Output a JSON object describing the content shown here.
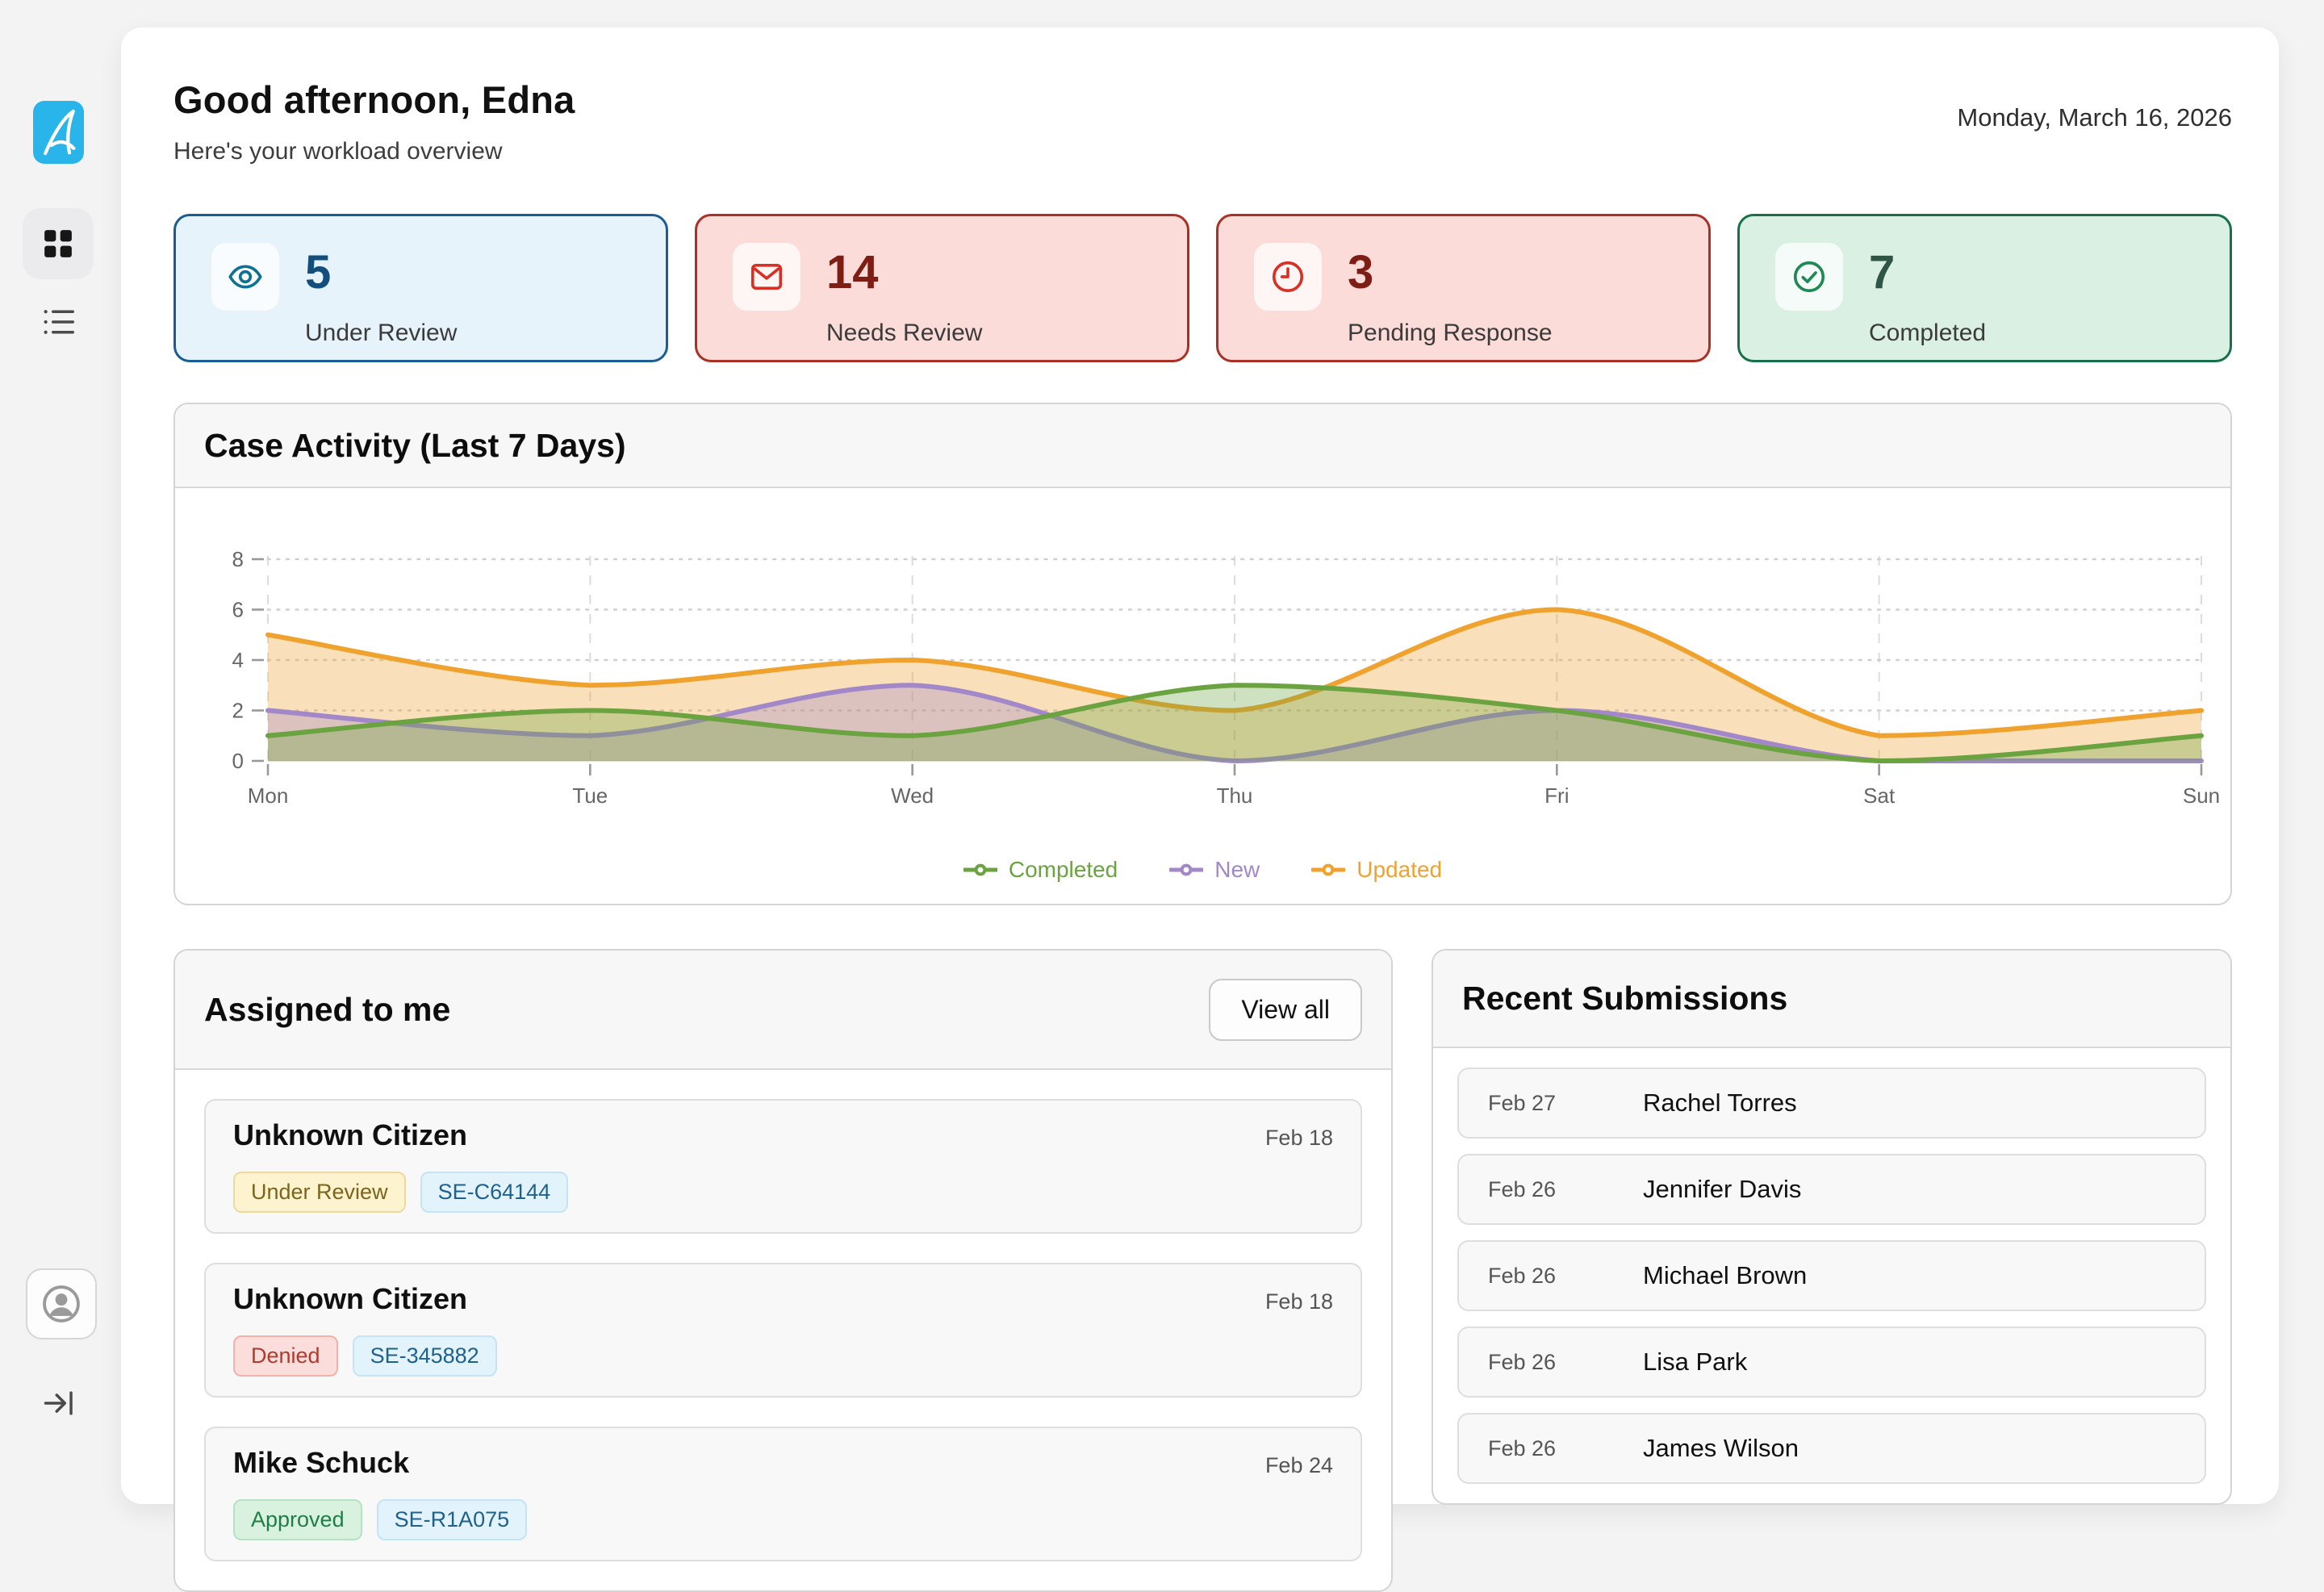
{
  "page": {
    "date": "Monday, March 16, 2026"
  },
  "sidebar": {
    "logo": "app-logo",
    "items": [
      {
        "icon": "grid",
        "active": true
      },
      {
        "icon": "list",
        "active": false
      },
      {
        "icon": "avatar",
        "active": false
      },
      {
        "icon": "logout",
        "active": false
      }
    ]
  },
  "header": {
    "greeting": "Good afternoon, Edna",
    "subtitle": "Here's your workload overview"
  },
  "stats": [
    {
      "value": "5",
      "label": "Under Review",
      "icon": "eye",
      "theme": "blue"
    },
    {
      "value": "14",
      "label": "Needs Review",
      "icon": "mail",
      "theme": "red"
    },
    {
      "value": "3",
      "label": "Pending Response",
      "icon": "clock",
      "theme": "red"
    },
    {
      "value": "7",
      "label": "Completed",
      "icon": "check",
      "theme": "green"
    }
  ],
  "chart_panel": {
    "title": "Case Activity (Last 7 Days)"
  },
  "chart_data": {
    "type": "area",
    "x": [
      "Mon",
      "Tue",
      "Wed",
      "Thu",
      "Fri",
      "Sat",
      "Sun"
    ],
    "series": [
      {
        "name": "Completed",
        "color": "#6aa33f",
        "values": [
          1,
          2,
          1,
          3,
          2,
          0,
          1
        ]
      },
      {
        "name": "New",
        "color": "#a287c9",
        "values": [
          2,
          1,
          3,
          0,
          2,
          0,
          0
        ]
      },
      {
        "name": "Updated",
        "color": "#f0a22e",
        "values": [
          5,
          3,
          4,
          2,
          6,
          1,
          2
        ]
      }
    ],
    "ylim": [
      0,
      8
    ],
    "yticks": [
      0,
      2,
      4,
      6,
      8
    ],
    "grid": true,
    "legend_position": "bottom"
  },
  "assigned": {
    "title": "Assigned to me",
    "view_all_label": "View all",
    "items": [
      {
        "name": "Unknown Citizen",
        "date": "Feb 18",
        "status": "Under Review",
        "status_theme": "yellow",
        "case_id": "SE-C64144"
      },
      {
        "name": "Unknown Citizen",
        "date": "Feb 18",
        "status": "Denied",
        "status_theme": "red",
        "case_id": "SE-345882"
      },
      {
        "name": "Mike Schuck",
        "date": "Feb 24",
        "status": "Approved",
        "status_theme": "green",
        "case_id": "SE-R1A075"
      }
    ]
  },
  "recent": {
    "title": "Recent Submissions",
    "items": [
      {
        "date": "Feb 27",
        "name": "Rachel Torres"
      },
      {
        "date": "Feb 26",
        "name": "Jennifer Davis"
      },
      {
        "date": "Feb 26",
        "name": "Michael Brown"
      },
      {
        "date": "Feb 26",
        "name": "Lisa Park"
      },
      {
        "date": "Feb 26",
        "name": "James Wilson"
      }
    ]
  },
  "colors": {
    "accent_blue": "#29b5ea",
    "card_blue_border": "#1a5c94",
    "card_red_border": "#a93226",
    "card_green_border": "#16704a",
    "series_completed": "#6aa33f",
    "series_new": "#a287c9",
    "series_updated": "#f0a22e"
  }
}
